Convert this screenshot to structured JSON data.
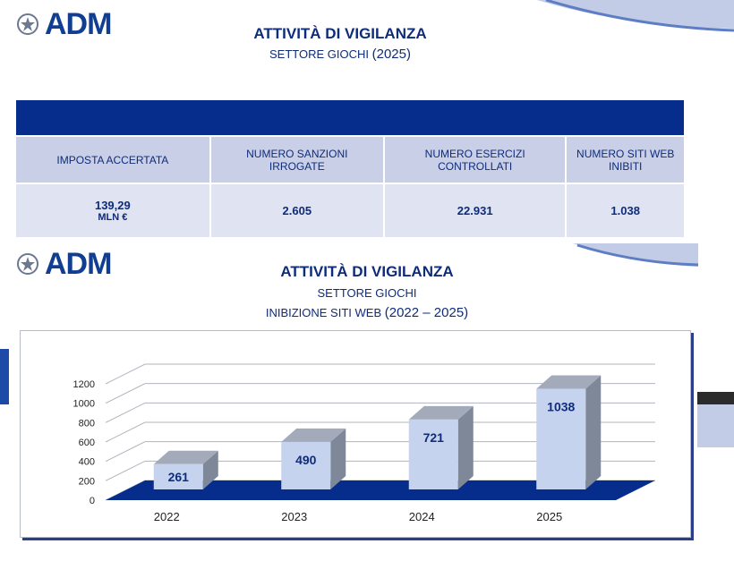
{
  "top": {
    "brand": "ADM",
    "title": "ATTIVITÀ DI VIGILANZA",
    "subtitle_prefix": "SETTORE GIOCHI",
    "subtitle_year": "(2025)"
  },
  "kpi": {
    "headers": [
      "IMPOSTA ACCERTATA",
      "NUMERO SANZIONI IRROGATE",
      "NUMERO ESERCIZI CONTROLLATI",
      "NUMERO SITI WEB INIBITI"
    ],
    "values": [
      "139,29",
      "2.605",
      "22.931",
      "1.038"
    ],
    "unit_first": "MLN €"
  },
  "bottom": {
    "brand": "ADM",
    "title": "ATTIVITÀ DI VIGILANZA",
    "subtitle1": "SETTORE GIOCHI",
    "subtitle2_prefix": "INIBIZIONE SITI WEB",
    "subtitle2_years": "(2022 – 2025)"
  },
  "chart_data": {
    "type": "bar",
    "categories": [
      "2022",
      "2023",
      "2024",
      "2025"
    ],
    "values": [
      261,
      490,
      721,
      1038
    ],
    "ylim": [
      0,
      1200
    ],
    "yticks": [
      "0",
      "200",
      "400",
      "600",
      "800",
      "1000",
      "1200"
    ],
    "colors": {
      "bar_front": "#c6d3ee",
      "bar_side": "#7f8899",
      "bar_top": "#a3abbb",
      "floor": "#062d8c",
      "label": "#0e2c7a"
    },
    "grid": true
  }
}
